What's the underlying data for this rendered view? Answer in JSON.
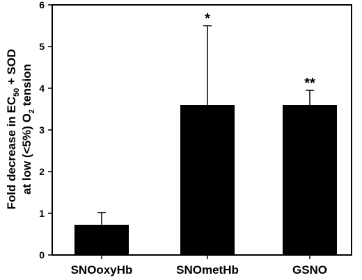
{
  "chart_data": {
    "type": "bar",
    "categories": [
      "SNOoxyHb",
      "SNOmetHb",
      "GSNO"
    ],
    "values": [
      0.72,
      3.6,
      3.6
    ],
    "error_plus": [
      0.3,
      1.9,
      0.35
    ],
    "annotations": [
      "",
      "*",
      "**"
    ],
    "ylabel_line1_parts": [
      "Fold decrease in EC",
      "50",
      " + SOD"
    ],
    "ylabel_line2_parts": [
      "at low (<5%) O",
      "2",
      " tension"
    ],
    "ylim": [
      0,
      6
    ],
    "yticks": [
      "0",
      "1",
      "2",
      "3",
      "4",
      "5",
      "6"
    ],
    "grid": false,
    "bar_color": "#000000"
  }
}
